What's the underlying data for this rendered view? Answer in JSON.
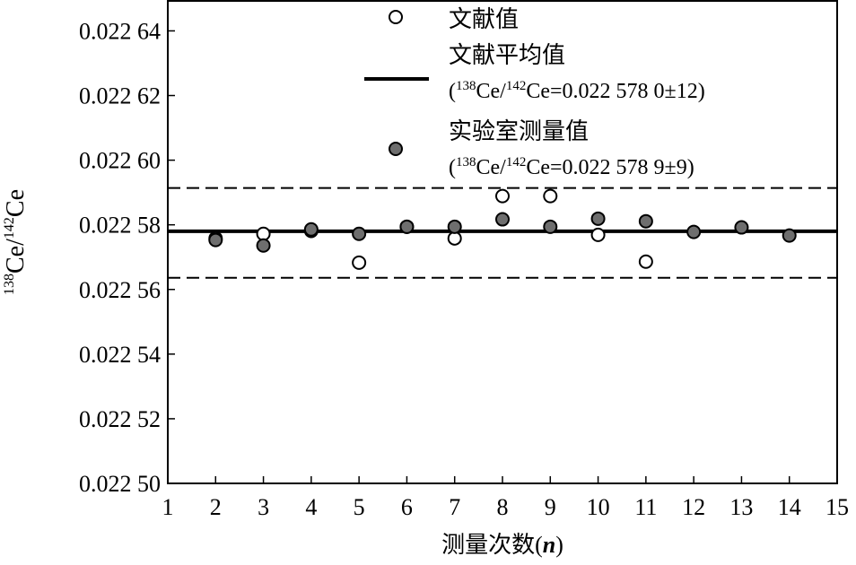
{
  "chart_data": {
    "type": "scatter",
    "ylabel_parts": [
      "138",
      "Ce/",
      "142",
      "Ce"
    ],
    "xlabel_parts": [
      "测量次数(",
      "n",
      ")"
    ],
    "xlim": [
      1,
      15
    ],
    "xticks": [
      1,
      2,
      3,
      4,
      5,
      6,
      7,
      8,
      9,
      10,
      11,
      12,
      13,
      14,
      15
    ],
    "ylim": [
      0.0225,
      0.022649
    ],
    "yticks": [
      {
        "value": 0.0225,
        "label": "0.022 50"
      },
      {
        "value": 0.02252,
        "label": "0.022 52"
      },
      {
        "value": 0.02254,
        "label": "0.022 54"
      },
      {
        "value": 0.02256,
        "label": "0.022 56"
      },
      {
        "value": 0.02258,
        "label": "0.022 58"
      },
      {
        "value": 0.0226,
        "label": "0.022 60"
      },
      {
        "value": 0.02262,
        "label": "0.022 62"
      },
      {
        "value": 0.02264,
        "label": "0.022 64"
      }
    ],
    "series": [
      {
        "name": "文献值",
        "marker": "open",
        "color": "#000000",
        "x": [
          2,
          3,
          4,
          5,
          6,
          7,
          8,
          9,
          10,
          11
        ],
        "values": [
          0.0225758,
          0.0225772,
          0.0225781,
          0.0225683,
          0.0225794,
          0.0225758,
          0.0225889,
          0.0225889,
          0.0225769,
          0.0225686
        ]
      },
      {
        "name": "实验室测量值",
        "marker": "filled",
        "color": "#6e6e6e",
        "note_parts": [
          "(",
          "138",
          "Ce/",
          "142",
          "Ce=0.022 578 9±9)"
        ],
        "x": [
          2,
          3,
          4,
          5,
          6,
          7,
          8,
          9,
          10,
          11,
          12,
          13,
          14
        ],
        "values": [
          0.0225753,
          0.0225736,
          0.0225786,
          0.0225772,
          0.0225794,
          0.0225794,
          0.0225817,
          0.0225794,
          0.0225819,
          0.0225811,
          0.0225778,
          0.0225792,
          0.0225767
        ]
      }
    ],
    "mean_line": {
      "name": "文献平均值",
      "value": 0.022578,
      "note_parts": [
        "(",
        "138",
        "Ce/",
        "142",
        "Ce=0.022 578 0±12)"
      ]
    },
    "dashed_lines": [
      0.0225914,
      0.0225636
    ]
  }
}
